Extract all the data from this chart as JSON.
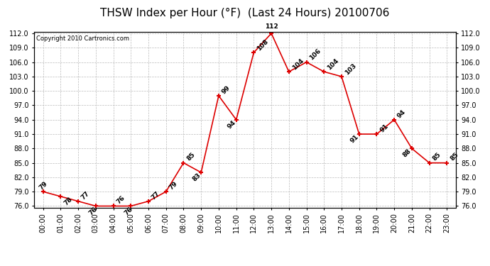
{
  "title": "THSW Index per Hour (°F)  (Last 24 Hours) 20100706",
  "copyright": "Copyright 2010 Cartronics.com",
  "hours": [
    "00:00",
    "01:00",
    "02:00",
    "03:00",
    "04:00",
    "05:00",
    "06:00",
    "07:00",
    "08:00",
    "09:00",
    "10:00",
    "11:00",
    "12:00",
    "13:00",
    "14:00",
    "15:00",
    "16:00",
    "17:00",
    "18:00",
    "19:00",
    "20:00",
    "21:00",
    "22:00",
    "23:00"
  ],
  "values": [
    79,
    78,
    77,
    76,
    76,
    76,
    77,
    79,
    85,
    83,
    99,
    94,
    108,
    112,
    104,
    106,
    104,
    103,
    91,
    91,
    94,
    88,
    85,
    85
  ],
  "ylim_min": 76.0,
  "ylim_max": 112.0,
  "yticks": [
    76.0,
    79.0,
    82.0,
    85.0,
    88.0,
    91.0,
    94.0,
    97.0,
    100.0,
    103.0,
    106.0,
    109.0,
    112.0
  ],
  "line_color": "#dd0000",
  "marker_color": "#dd0000",
  "background_color": "#ffffff",
  "grid_color": "#bbbbbb",
  "title_fontsize": 11,
  "label_fontsize": 7,
  "annotation_fontsize": 6.5,
  "annotation_rotation": 45
}
